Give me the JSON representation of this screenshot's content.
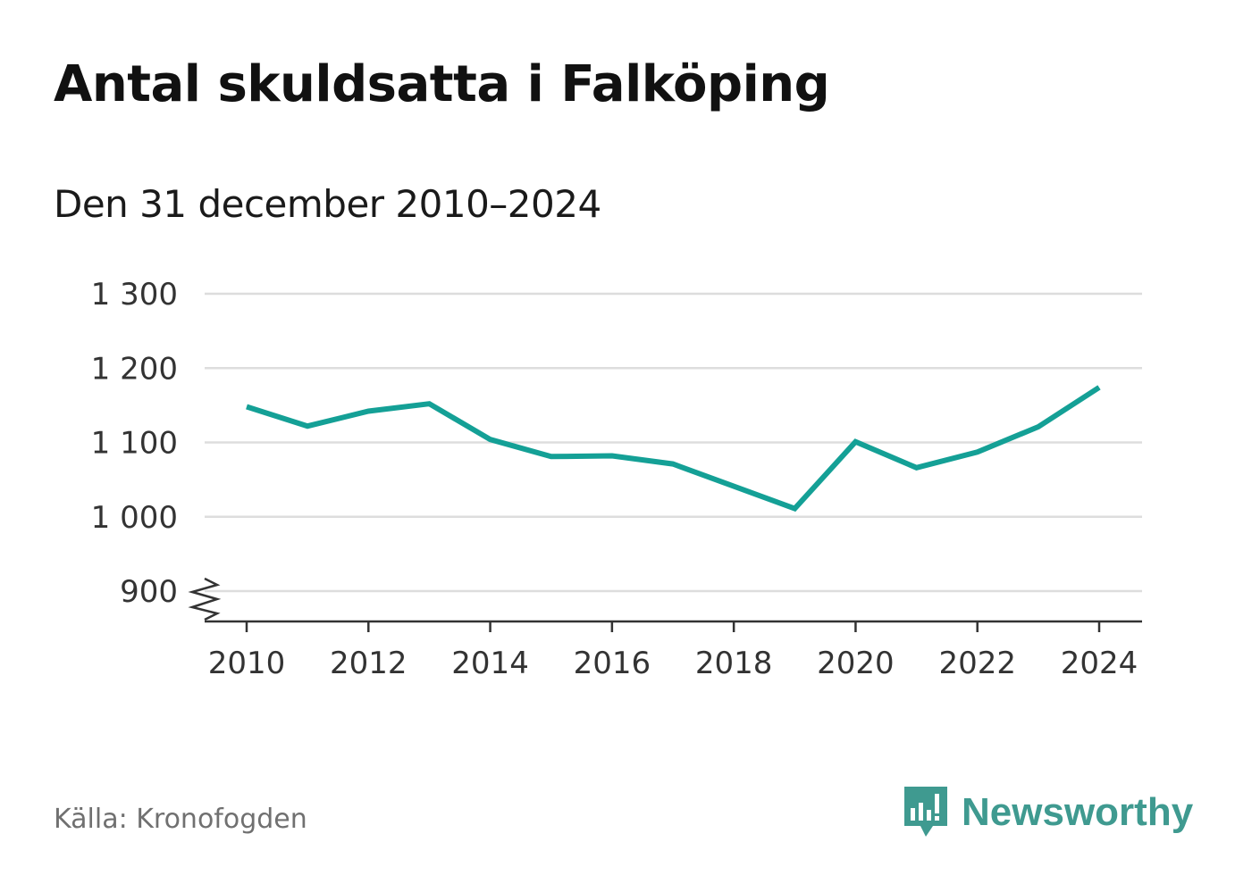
{
  "title": "Antal skuldsatta i Falköping",
  "subtitle": "Den 31 december 2010–2024",
  "source": "Källa: Kronofogden",
  "brand": "Newsworthy",
  "colors": {
    "line": "#14a096",
    "grid": "#dddddd",
    "axis": "#333333",
    "brand": "#3f9a90"
  },
  "chart_data": {
    "type": "line",
    "title": "Antal skuldsatta i Falköping",
    "subtitle": "Den 31 december 2010–2024",
    "x": [
      2010,
      2011,
      2012,
      2013,
      2014,
      2015,
      2016,
      2017,
      2018,
      2019,
      2020,
      2021,
      2022,
      2023,
      2024
    ],
    "series": [
      {
        "values": [
          1148,
          1122,
          1142,
          1152,
          1104,
          1081,
          1082,
          1071,
          1041,
          1011,
          1101,
          1066,
          1087,
          1121,
          1174
        ]
      }
    ],
    "ylim": [
      900,
      1300
    ],
    "yticks": [
      900,
      1000,
      1100,
      1200,
      1300
    ],
    "ytick_labels": [
      "900",
      "1 000",
      "1 100",
      "1 200",
      "1 300"
    ],
    "xticks": [
      2010,
      2012,
      2014,
      2016,
      2018,
      2020,
      2022,
      2024
    ],
    "xtick_labels": [
      "2010",
      "2012",
      "2014",
      "2016",
      "2018",
      "2020",
      "2022",
      "2024"
    ],
    "y_axis_break": true,
    "grid": true,
    "legend": "none"
  }
}
